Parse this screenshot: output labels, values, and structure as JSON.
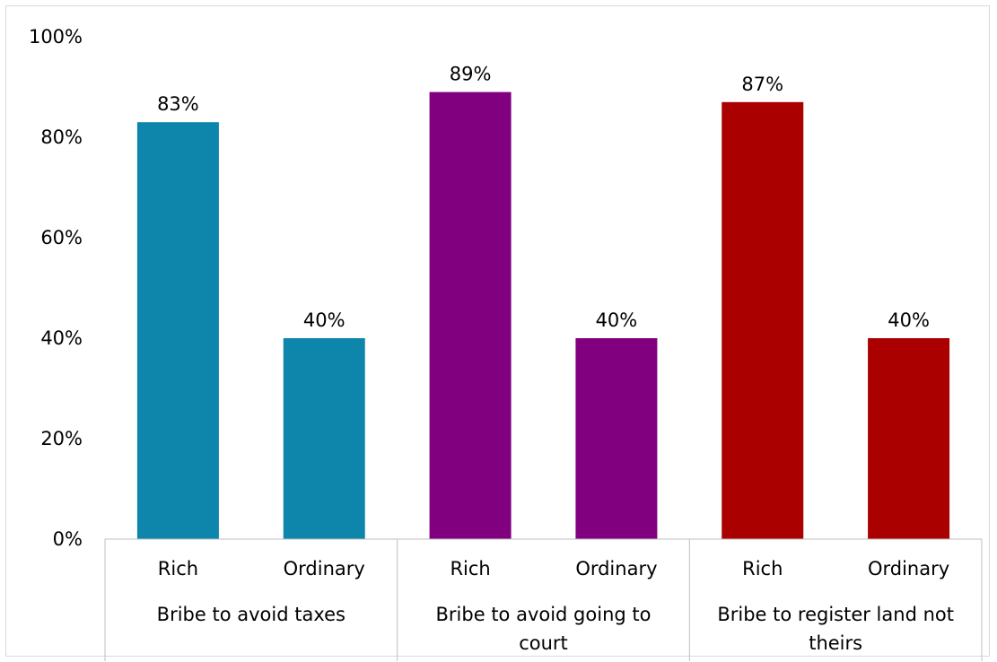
{
  "chart_data": {
    "type": "bar",
    "title": "",
    "xlabel": "",
    "ylabel": "",
    "ylim": [
      0,
      100
    ],
    "yticks": [
      0,
      20,
      40,
      60,
      80,
      100
    ],
    "ytick_labels": [
      "0%",
      "20%",
      "40%",
      "60%",
      "80%",
      "100%"
    ],
    "grid": false,
    "legend": "none",
    "groups": [
      {
        "label": "Bribe to avoid taxes",
        "label_lines": [
          "Bribe to avoid taxes"
        ],
        "color": "#0e86ab",
        "bars": [
          {
            "category": "Rich",
            "value": 83,
            "label": "83%"
          },
          {
            "category": "Ordinary",
            "value": 40,
            "label": "40%"
          }
        ]
      },
      {
        "label": "Bribe to avoid going to court",
        "label_lines": [
          "Bribe to avoid going to",
          "court"
        ],
        "color": "#800080",
        "bars": [
          {
            "category": "Rich",
            "value": 89,
            "label": "89%"
          },
          {
            "category": "Ordinary",
            "value": 40,
            "label": "40%"
          }
        ]
      },
      {
        "label": "Bribe to register land not theirs",
        "label_lines": [
          "Bribe to register land not",
          "theirs"
        ],
        "color": "#aa0000",
        "bars": [
          {
            "category": "Rich",
            "value": 87,
            "label": "87%"
          },
          {
            "category": "Ordinary",
            "value": 40,
            "label": "40%"
          }
        ]
      }
    ]
  }
}
